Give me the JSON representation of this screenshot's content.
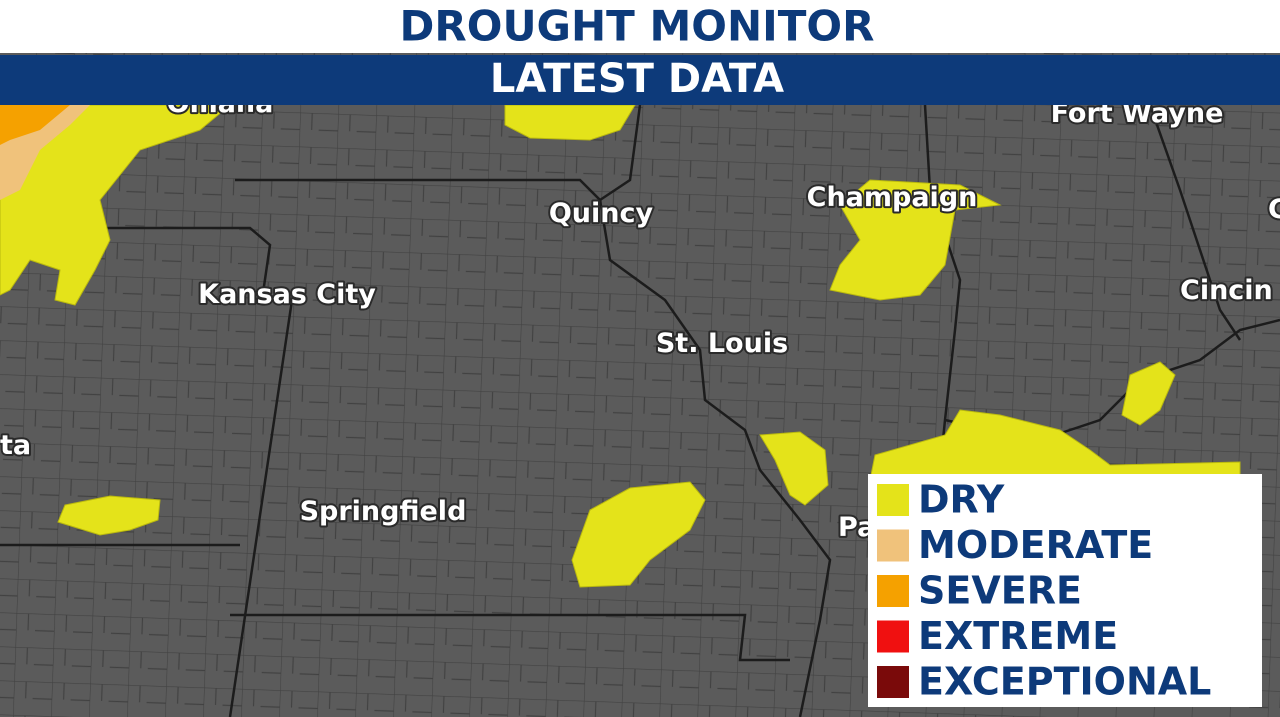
{
  "header": {
    "title": "DROUGHT MONITOR",
    "subtitle": "LATEST DATA"
  },
  "cities": [
    "Omaha",
    "Fort Wayne",
    "Quincy",
    "Champaign",
    "Kansas City",
    "Cincin",
    "St. Louis",
    "ta",
    "Springfield",
    "Pa",
    "C"
  ],
  "legend": [
    {
      "label": "DRY",
      "color": "#e4e31a"
    },
    {
      "label": "MODERATE",
      "color": "#f0c27b"
    },
    {
      "label": "SEVERE",
      "color": "#f5a100"
    },
    {
      "label": "EXTREME",
      "color": "#f01010"
    },
    {
      "label": "EXCEPTIONAL",
      "color": "#7a0a0a"
    }
  ]
}
